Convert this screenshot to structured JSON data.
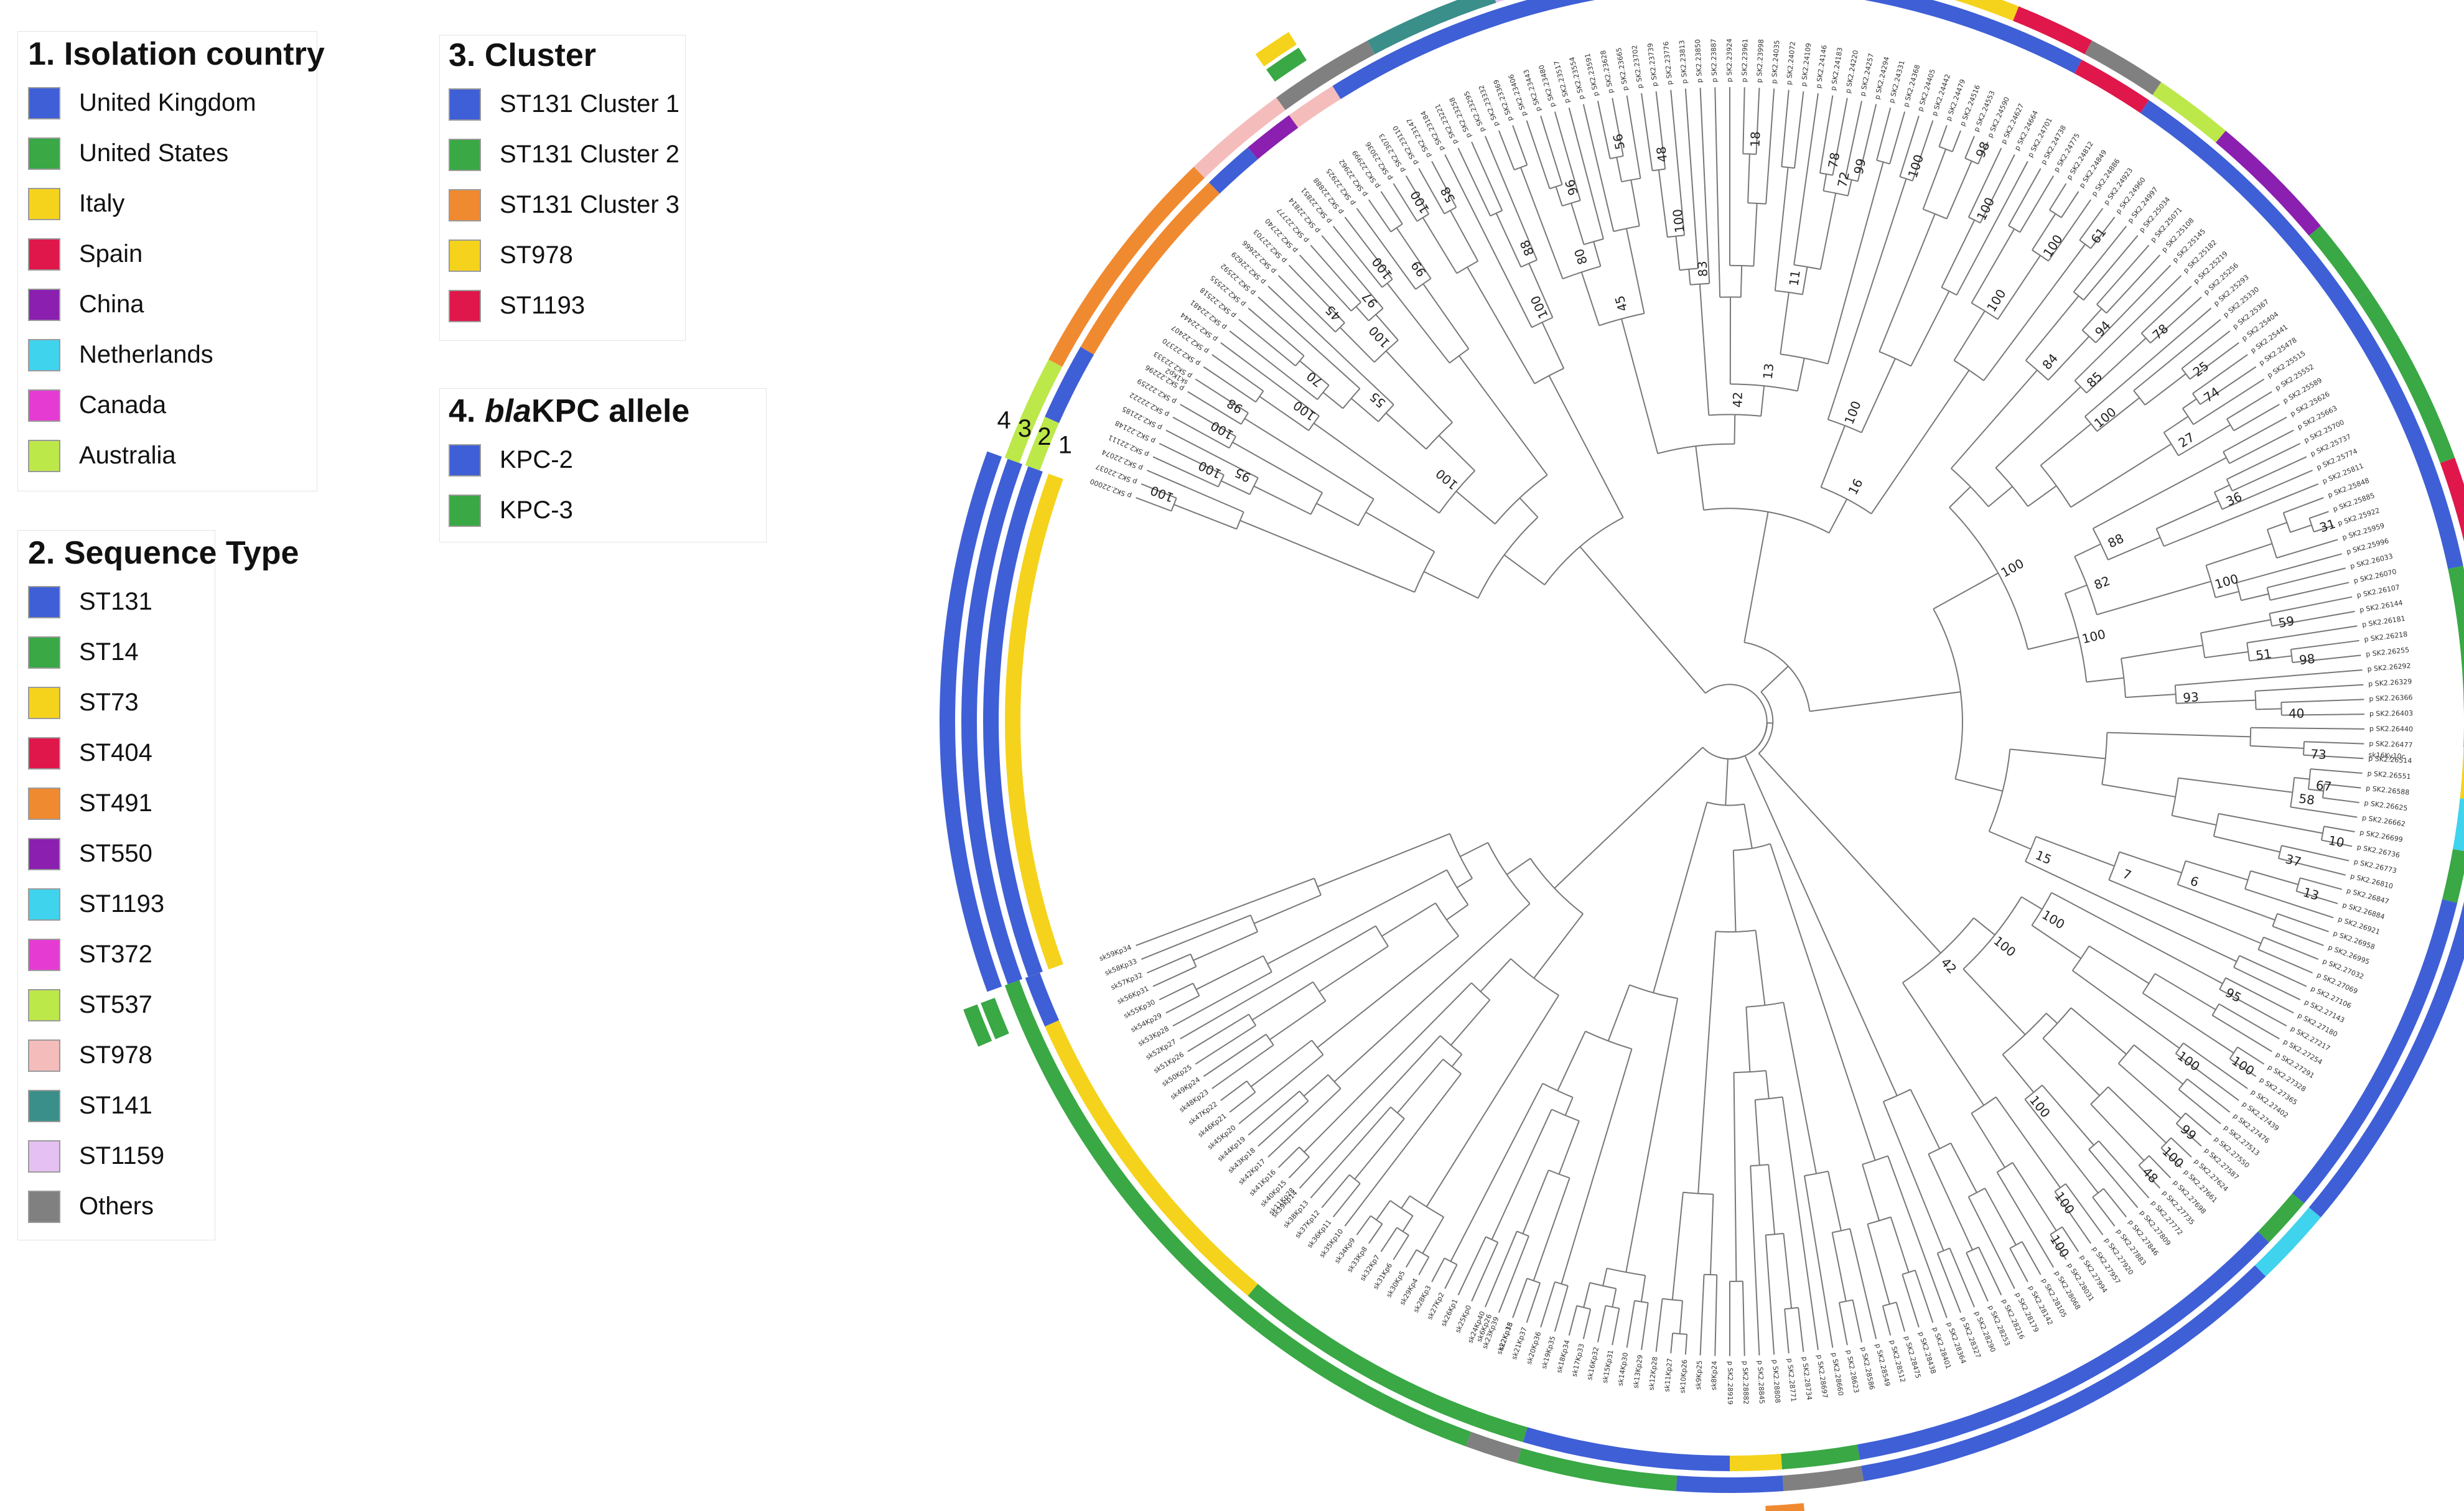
{
  "legend": {
    "country": {
      "title": "1. Isolation country",
      "items": [
        {
          "label": "United Kingdom",
          "color": "#3f5fd6"
        },
        {
          "label": "United States",
          "color": "#39a845"
        },
        {
          "label": "Italy",
          "color": "#f5d31c"
        },
        {
          "label": "Spain",
          "color": "#e0174a"
        },
        {
          "label": "China",
          "color": "#8a1fb0"
        },
        {
          "label": "Netherlands",
          "color": "#3fd3ee"
        },
        {
          "label": "Canada",
          "color": "#e63bd2"
        },
        {
          "label": "Australia",
          "color": "#bde84a"
        }
      ]
    },
    "sequence_type": {
      "title": "2. Sequence Type",
      "items": [
        {
          "label": "ST131",
          "color": "#3f5fd6"
        },
        {
          "label": "ST14",
          "color": "#39a845"
        },
        {
          "label": "ST73",
          "color": "#f5d31c"
        },
        {
          "label": "ST404",
          "color": "#e0174a"
        },
        {
          "label": "ST491",
          "color": "#f08a30"
        },
        {
          "label": "ST550",
          "color": "#8a1fb0"
        },
        {
          "label": "ST1193",
          "color": "#3fd3ee"
        },
        {
          "label": "ST372",
          "color": "#e63bd2"
        },
        {
          "label": "ST537",
          "color": "#bde84a"
        },
        {
          "label": "ST978",
          "color": "#f5bcbc"
        },
        {
          "label": "ST141",
          "color": "#3a8f8a"
        },
        {
          "label": "ST1159",
          "color": "#e4c1f2"
        },
        {
          "label": "Others",
          "color": "#808080"
        }
      ]
    },
    "cluster": {
      "title": "3. Cluster",
      "items": [
        {
          "label": "ST131 Cluster 1",
          "color": "#3f5fd6"
        },
        {
          "label": "ST131 Cluster 2",
          "color": "#39a845"
        },
        {
          "label": "ST131 Cluster 3",
          "color": "#f08a30"
        },
        {
          "label": "ST978",
          "color": "#f5d31c"
        },
        {
          "label": "ST1193",
          "color": "#e0174a"
        }
      ]
    },
    "kpc": {
      "title_prefix": "4. ",
      "title_italic": "bla",
      "title_suffix": "KPC allele",
      "items": [
        {
          "label": "KPC-2",
          "color": "#3f5fd6"
        },
        {
          "label": "KPC-3",
          "color": "#39a845"
        }
      ]
    }
  },
  "tree": {
    "ring_labels": [
      "4",
      "3",
      "2",
      "1"
    ],
    "bootstrap_values": [
      "100",
      "100",
      "95",
      "100",
      "98",
      "100",
      "70",
      "100",
      "55",
      "45",
      "100",
      "97",
      "100",
      "99",
      "100",
      "58",
      "100",
      "88",
      "80",
      "96",
      "45",
      "56",
      "48",
      "100",
      "83",
      "42",
      "18",
      "13",
      "11",
      "78",
      "72",
      "99",
      "100",
      "100",
      "98",
      "100",
      "16",
      "100",
      "100",
      "61",
      "84",
      "94",
      "85",
      "78",
      "100",
      "25",
      "74",
      "27",
      "100",
      "88",
      "36",
      "82",
      "31",
      "100",
      "100",
      "59",
      "51",
      "98",
      "93",
      "40",
      "73",
      "67",
      "58",
      "10",
      "37",
      "13",
      "6",
      "7",
      "15",
      "95",
      "100",
      "100",
      "100",
      "100",
      "99",
      "100",
      "48",
      "42",
      "100",
      "100",
      "100"
    ],
    "highlighted_labels": [
      {
        "text": "sk16Ky10c",
        "color": "#e0174a"
      },
      {
        "text": "sk2Kp15",
        "color": "#39a845"
      },
      {
        "text": "sk6Kp26",
        "color": "#39a845"
      },
      {
        "text": "sk11Kp28",
        "color": "#f08a30"
      },
      {
        "text": "sk1Kp2",
        "color": "#b8b000"
      }
    ],
    "outer_markers": [
      {
        "position": "top-left",
        "colors": [
          "#39a845",
          "#f5d31c"
        ]
      },
      {
        "position": "right",
        "colors": [
          "#e0174a",
          "#39a845"
        ]
      },
      {
        "position": "left",
        "colors": [
          "#39a845",
          "#39a845"
        ]
      },
      {
        "position": "bottom",
        "colors": [
          "#f08a30",
          "#3f5fd6"
        ]
      }
    ]
  }
}
